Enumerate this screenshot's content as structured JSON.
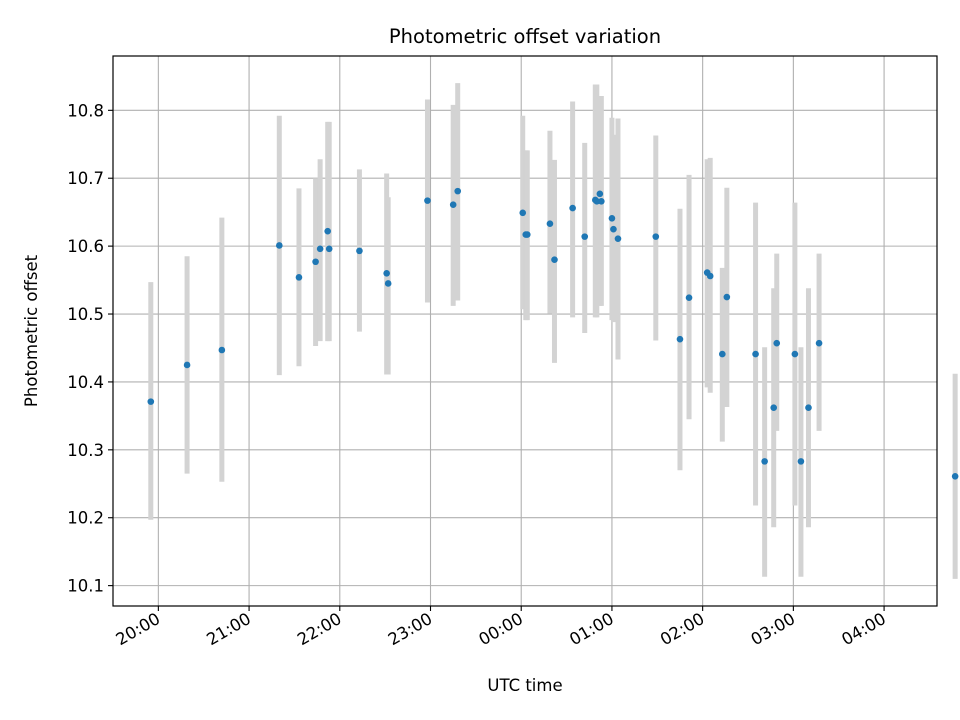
{
  "chart_data": {
    "type": "scatter",
    "title": "Photometric offset variation",
    "xlabel": "UTC time",
    "ylabel": "Photometric offset",
    "x_tick_labels": [
      "20:00",
      "21:00",
      "22:00",
      "23:00",
      "00:00",
      "01:00",
      "02:00",
      "03:00",
      "04:00"
    ],
    "y_tick_labels": [
      "10.1",
      "10.2",
      "10.3",
      "10.4",
      "10.5",
      "10.6",
      "10.7",
      "10.8"
    ],
    "y_ticks": [
      10.1,
      10.2,
      10.3,
      10.4,
      10.5,
      10.6,
      10.7,
      10.8
    ],
    "xlim": [
      "19:30",
      "04:35"
    ],
    "ylim": [
      10.07,
      10.88
    ],
    "grid": true,
    "marker_color": "#1f77b4",
    "errorbar_color": "#d3d3d3",
    "series": [
      {
        "x": [
          "19:55",
          "20:19",
          "20:42",
          "21:20",
          "21:33",
          "21:44",
          "21:47",
          "21:52",
          "21:53",
          "22:13",
          "22:31",
          "22:32",
          "22:58",
          "23:15",
          "23:18",
          "00:01",
          "00:03",
          "00:04",
          "00:19",
          "00:22",
          "00:34",
          "00:42",
          "00:49",
          "00:50",
          "00:52",
          "00:53",
          "01:00",
          "01:01",
          "01:04",
          "01:29",
          "01:45",
          "01:51",
          "02:03",
          "02:05",
          "02:13",
          "02:16",
          "02:35",
          "02:41",
          "02:47",
          "02:49",
          "03:01",
          "03:05",
          "03:10",
          "03:17",
          "04:47"
        ],
        "y": [
          10.371,
          10.425,
          10.447,
          10.601,
          10.554,
          10.577,
          10.596,
          10.622,
          10.596,
          10.593,
          10.56,
          10.545,
          10.667,
          10.661,
          10.681,
          10.649,
          10.617,
          10.617,
          10.633,
          10.58,
          10.656,
          10.614,
          10.668,
          10.666,
          10.677,
          10.666,
          10.641,
          10.625,
          10.611,
          10.614,
          10.463,
          10.524,
          10.561,
          10.556,
          10.441,
          10.525,
          10.441,
          10.283,
          10.362,
          10.457,
          10.441,
          10.283,
          10.362,
          10.457,
          10.261
        ],
        "err_low": [
          10.197,
          10.265,
          10.253,
          10.41,
          10.423,
          10.453,
          10.46,
          10.46,
          10.46,
          10.474,
          10.411,
          10.411,
          10.517,
          10.512,
          10.52,
          10.507,
          10.491,
          10.491,
          10.501,
          10.428,
          10.495,
          10.472,
          10.495,
          10.495,
          10.512,
          10.512,
          10.491,
          10.488,
          10.433,
          10.461,
          10.27,
          10.345,
          10.392,
          10.384,
          10.312,
          10.363,
          10.218,
          10.113,
          10.186,
          10.328,
          10.218,
          10.113,
          10.186,
          10.328,
          10.11
        ],
        "err_high": [
          10.547,
          10.585,
          10.642,
          10.792,
          10.685,
          10.7,
          10.728,
          10.783,
          10.783,
          10.713,
          10.707,
          10.672,
          10.816,
          10.808,
          10.84,
          10.792,
          10.741,
          10.741,
          10.77,
          10.727,
          10.813,
          10.752,
          10.838,
          10.838,
          10.821,
          10.821,
          10.789,
          10.764,
          10.788,
          10.763,
          10.655,
          10.705,
          10.728,
          10.73,
          10.568,
          10.686,
          10.664,
          10.451,
          10.538,
          10.589,
          10.664,
          10.451,
          10.538,
          10.589,
          10.412
        ]
      }
    ]
  }
}
